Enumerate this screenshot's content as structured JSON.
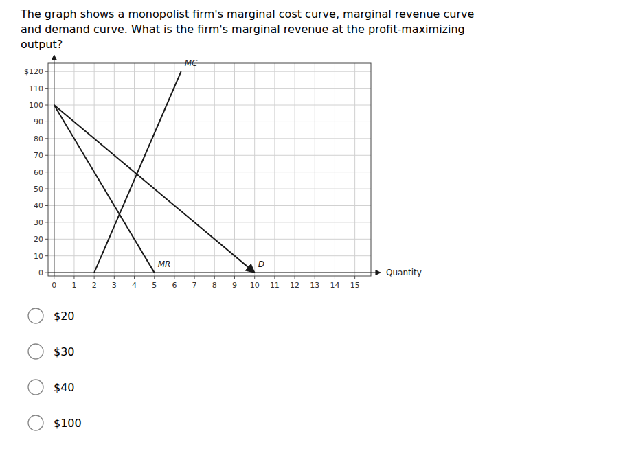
{
  "chart_data": {
    "type": "line",
    "title": [
      "The graph shows a monopolist firm's marginal cost curve, marginal revenue curve",
      "and demand curve. What is the firm's marginal revenue at the profit-maximizing",
      "output?"
    ],
    "x_label": "Quantity",
    "series": [
      {
        "name": "D",
        "color": "#1a1a1a",
        "x": [
          0,
          10
        ],
        "values": [
          100,
          0
        ]
      },
      {
        "name": "MR",
        "color": "#1a1a1a",
        "x": [
          0,
          5
        ],
        "values": [
          100,
          0
        ]
      },
      {
        "name": "MC",
        "color": "#1a1a1a",
        "x": [
          2,
          6.333
        ],
        "values": [
          0,
          120
        ]
      }
    ],
    "xlim": [
      -0.3,
      15.8
    ],
    "ylim": [
      -2,
      125
    ],
    "xticks": [
      0,
      1,
      2,
      3,
      4,
      5,
      6,
      7,
      8,
      9,
      10,
      11,
      12,
      13,
      14,
      15
    ],
    "yticks": [
      0,
      10,
      20,
      30,
      40,
      50,
      60,
      70,
      80,
      90,
      100,
      110,
      {
        "value": 120,
        "label": "$120"
      }
    ],
    "grid": true,
    "choices": [
      "$20",
      "$30",
      "$40",
      "$100"
    ]
  }
}
